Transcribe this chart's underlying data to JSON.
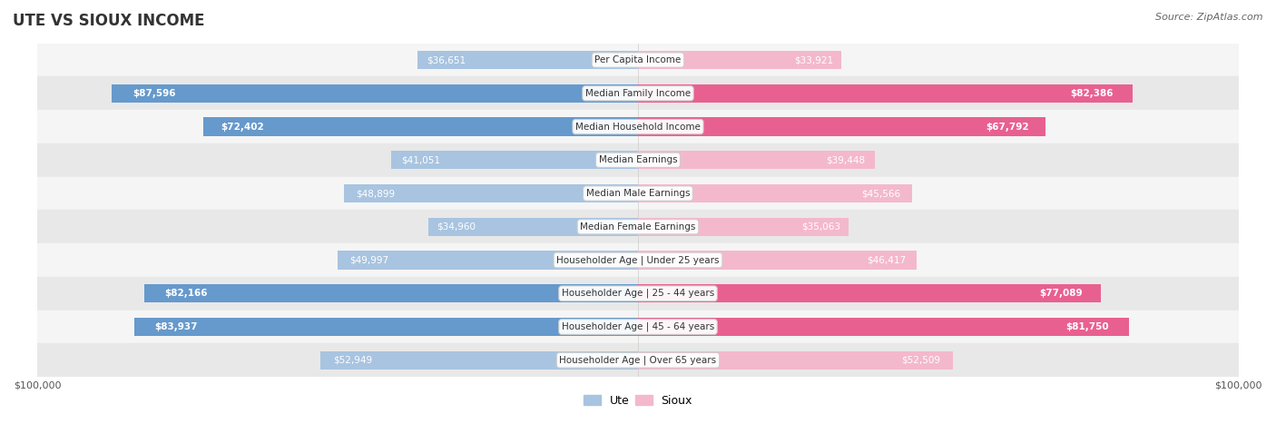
{
  "title": "UTE VS SIOUX INCOME",
  "source": "Source: ZipAtlas.com",
  "categories": [
    "Per Capita Income",
    "Median Family Income",
    "Median Household Income",
    "Median Earnings",
    "Median Male Earnings",
    "Median Female Earnings",
    "Householder Age | Under 25 years",
    "Householder Age | 25 - 44 years",
    "Householder Age | 45 - 64 years",
    "Householder Age | Over 65 years"
  ],
  "ute_values": [
    36651,
    87596,
    72402,
    41051,
    48899,
    34960,
    49997,
    82166,
    83937,
    52949
  ],
  "sioux_values": [
    33921,
    82386,
    67792,
    39448,
    45566,
    35063,
    46417,
    77089,
    81750,
    52509
  ],
  "ute_labels": [
    "$36,651",
    "$87,596",
    "$72,402",
    "$41,051",
    "$48,899",
    "$34,960",
    "$49,997",
    "$82,166",
    "$83,937",
    "$52,949"
  ],
  "sioux_labels": [
    "$33,921",
    "$82,386",
    "$67,792",
    "$39,448",
    "$45,566",
    "$35,063",
    "$46,417",
    "$77,089",
    "$81,750",
    "$52,509"
  ],
  "max_value": 100000,
  "ute_color_light": "#a8c4e0",
  "ute_color_dark": "#6699cc",
  "sioux_color_light": "#f4b8cc",
  "sioux_color_dark": "#e86090",
  "bar_height": 0.55,
  "row_bg_light": "#f5f5f5",
  "row_bg_dark": "#e8e8e8",
  "label_color_inside": "#ffffff",
  "label_color_outside": "#555555",
  "category_bg": "#ffffff",
  "xlim": [
    -100000,
    100000
  ],
  "figsize": [
    14.06,
    4.67
  ],
  "dpi": 100
}
